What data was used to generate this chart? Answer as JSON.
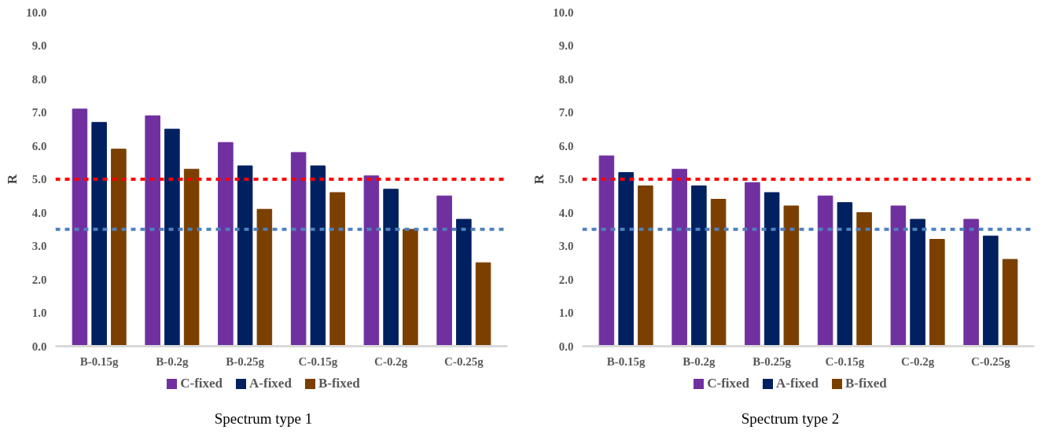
{
  "chart_data": [
    {
      "type": "bar",
      "title": "Spectrum type 1",
      "ylabel": "R",
      "categories": [
        "B-0.15g",
        "B-0.2g",
        "B-0.25g",
        "C-0.15g",
        "C-0.2g",
        "C-0.25g"
      ],
      "series": [
        {
          "name": "C-fixed",
          "color": "#7030a0",
          "values": [
            7.1,
            6.9,
            6.1,
            5.8,
            5.1,
            4.5
          ]
        },
        {
          "name": "A-fixed",
          "color": "#002060",
          "values": [
            6.7,
            6.5,
            5.4,
            5.4,
            4.7,
            3.8
          ]
        },
        {
          "name": "B-fixed",
          "color": "#7b3f00",
          "values": [
            5.9,
            5.3,
            4.1,
            4.6,
            3.5,
            2.5
          ]
        }
      ],
      "ylim": [
        0,
        10
      ],
      "yticks": [
        {
          "value": 0,
          "label": "0.0"
        },
        {
          "value": 1,
          "label": "1.0"
        },
        {
          "value": 2,
          "label": "2.0"
        },
        {
          "value": 3,
          "label": "3.0"
        },
        {
          "value": 4,
          "label": "4.0"
        },
        {
          "value": 5,
          "label": "5.0"
        },
        {
          "value": 6,
          "label": "6.0"
        },
        {
          "value": 7,
          "label": "7.0"
        },
        {
          "value": 8,
          "label": "8.0"
        },
        {
          "value": 9,
          "label": "9.0"
        },
        {
          "value": 10,
          "label": "10.0"
        }
      ],
      "ref_lines": [
        {
          "axis": "y",
          "value": 5.0,
          "label": null,
          "color": "#ff0000",
          "line_style": "dashed"
        },
        {
          "axis": "y",
          "value": 3.5,
          "label": null,
          "color": "#4f81bd",
          "line_style": "dashed"
        }
      ],
      "grid": false,
      "legend": "bottom"
    },
    {
      "type": "bar",
      "title": "Spectrum type 2",
      "ylabel": "R",
      "categories": [
        "B-0.15g",
        "B-0.2g",
        "B-0.25g",
        "C-0.15g",
        "C-0.2g",
        "C-0.25g"
      ],
      "series": [
        {
          "name": "C-fixed",
          "color": "#7030a0",
          "values": [
            5.7,
            5.3,
            4.9,
            4.5,
            4.2,
            3.8
          ]
        },
        {
          "name": "A-fixed",
          "color": "#002060",
          "values": [
            5.2,
            4.8,
            4.6,
            4.3,
            3.8,
            3.3
          ]
        },
        {
          "name": "B-fixed",
          "color": "#7b3f00",
          "values": [
            4.8,
            4.4,
            4.2,
            4.0,
            3.2,
            2.6
          ]
        }
      ],
      "ylim": [
        0,
        10
      ],
      "yticks": [
        {
          "value": 0,
          "label": "0.0"
        },
        {
          "value": 1,
          "label": "1.0"
        },
        {
          "value": 2,
          "label": "2.0"
        },
        {
          "value": 3,
          "label": "3.0"
        },
        {
          "value": 4,
          "label": "4.0"
        },
        {
          "value": 5,
          "label": "5.0"
        },
        {
          "value": 6,
          "label": "6.0"
        },
        {
          "value": 7,
          "label": "7.0"
        },
        {
          "value": 8,
          "label": "8.0"
        },
        {
          "value": 9,
          "label": "9.0"
        },
        {
          "value": 10,
          "label": "10.0"
        }
      ],
      "ref_lines": [
        {
          "axis": "y",
          "value": 5.0,
          "label": null,
          "color": "#ff0000",
          "line_style": "dashed"
        },
        {
          "axis": "y",
          "value": 3.5,
          "label": null,
          "color": "#4f81bd",
          "line_style": "dashed"
        }
      ],
      "grid": false,
      "legend": "bottom"
    }
  ]
}
